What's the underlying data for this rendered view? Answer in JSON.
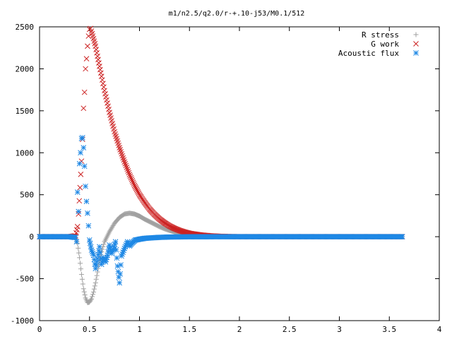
{
  "chart_data": {
    "type": "scatter",
    "title": "m1/n2.5/q2.0/r-+.10-j53/M0.1/512",
    "xlabel": "",
    "ylabel": "",
    "xlim": [
      0,
      4
    ],
    "ylim": [
      -1000,
      2500
    ],
    "x_ticks": [
      "0",
      "0.5",
      "1",
      "1.5",
      "2",
      "2.5",
      "3",
      "3.5",
      "4"
    ],
    "x_tick_values": [
      0,
      0.5,
      1,
      1.5,
      2,
      2.5,
      3,
      3.5,
      4
    ],
    "y_ticks": [
      "2500",
      "2000",
      "1500",
      "1000",
      "500",
      "0",
      "-500",
      "-1000"
    ],
    "y_tick_values": [
      2500,
      2000,
      1500,
      1000,
      500,
      0,
      -500,
      -1000
    ],
    "grid": false,
    "legend_position": "top-right",
    "series": [
      {
        "name": "R stress",
        "marker": "plus",
        "color": "#a0a0a0",
        "points": [
          [
            0.0,
            0
          ],
          [
            0.1,
            0
          ],
          [
            0.2,
            0
          ],
          [
            0.3,
            0
          ],
          [
            0.36,
            -10
          ],
          [
            0.38,
            -80
          ],
          [
            0.4,
            -250
          ],
          [
            0.42,
            -450
          ],
          [
            0.44,
            -620
          ],
          [
            0.46,
            -730
          ],
          [
            0.48,
            -785
          ],
          [
            0.5,
            -780
          ],
          [
            0.52,
            -740
          ],
          [
            0.54,
            -660
          ],
          [
            0.56,
            -550
          ],
          [
            0.58,
            -420
          ],
          [
            0.6,
            -290
          ],
          [
            0.62,
            -180
          ],
          [
            0.65,
            -60
          ],
          [
            0.7,
            60
          ],
          [
            0.75,
            160
          ],
          [
            0.8,
            230
          ],
          [
            0.85,
            270
          ],
          [
            0.9,
            280
          ],
          [
            0.95,
            270
          ],
          [
            1.0,
            245
          ],
          [
            1.05,
            210
          ],
          [
            1.1,
            180
          ],
          [
            1.15,
            150
          ],
          [
            1.2,
            120
          ],
          [
            1.25,
            95
          ],
          [
            1.3,
            75
          ],
          [
            1.35,
            58
          ],
          [
            1.4,
            44
          ],
          [
            1.45,
            33
          ],
          [
            1.5,
            25
          ],
          [
            1.6,
            14
          ],
          [
            1.7,
            7
          ],
          [
            1.8,
            3
          ],
          [
            1.9,
            1
          ],
          [
            2.0,
            0
          ],
          [
            2.5,
            0
          ],
          [
            3.0,
            0
          ],
          [
            3.5,
            0
          ],
          [
            3.63,
            0
          ]
        ]
      },
      {
        "name": "G work",
        "marker": "cross",
        "color": "#cc2222",
        "points": [
          [
            0.0,
            0
          ],
          [
            0.1,
            0
          ],
          [
            0.2,
            0
          ],
          [
            0.3,
            0
          ],
          [
            0.36,
            10
          ],
          [
            0.38,
            120
          ],
          [
            0.39,
            270
          ],
          [
            0.42,
            900
          ],
          [
            0.43,
            1160
          ],
          [
            0.44,
            1530
          ],
          [
            0.45,
            1720
          ],
          [
            0.46,
            2000
          ],
          [
            0.47,
            2120
          ],
          [
            0.48,
            2270
          ],
          [
            0.49,
            2390
          ],
          [
            0.5,
            2470
          ],
          [
            0.51,
            2480
          ],
          [
            0.52,
            2450
          ],
          [
            0.54,
            2360
          ],
          [
            0.56,
            2270
          ],
          [
            0.58,
            2150
          ],
          [
            0.6,
            2030
          ],
          [
            0.62,
            1910
          ],
          [
            0.65,
            1740
          ],
          [
            0.7,
            1480
          ],
          [
            0.75,
            1250
          ],
          [
            0.8,
            1060
          ],
          [
            0.85,
            890
          ],
          [
            0.9,
            740
          ],
          [
            0.95,
            610
          ],
          [
            1.0,
            500
          ],
          [
            1.05,
            410
          ],
          [
            1.1,
            330
          ],
          [
            1.15,
            265
          ],
          [
            1.2,
            210
          ],
          [
            1.25,
            165
          ],
          [
            1.3,
            128
          ],
          [
            1.35,
            98
          ],
          [
            1.4,
            74
          ],
          [
            1.45,
            55
          ],
          [
            1.5,
            40
          ],
          [
            1.6,
            22
          ],
          [
            1.7,
            11
          ],
          [
            1.8,
            5
          ],
          [
            1.9,
            2
          ],
          [
            2.0,
            0
          ],
          [
            2.5,
            0
          ],
          [
            3.0,
            0
          ],
          [
            3.5,
            0
          ],
          [
            3.63,
            0
          ]
        ]
      },
      {
        "name": "Acoustic flux",
        "marker": "star",
        "color": "#1e88e5",
        "points": [
          [
            0.0,
            0
          ],
          [
            0.1,
            0
          ],
          [
            0.2,
            0
          ],
          [
            0.3,
            0
          ],
          [
            0.36,
            -10
          ],
          [
            0.37,
            -60
          ],
          [
            0.38,
            530
          ],
          [
            0.39,
            300
          ],
          [
            0.4,
            870
          ],
          [
            0.41,
            1000
          ],
          [
            0.42,
            1170
          ],
          [
            0.43,
            1180
          ],
          [
            0.44,
            1060
          ],
          [
            0.45,
            840
          ],
          [
            0.46,
            600
          ],
          [
            0.47,
            420
          ],
          [
            0.48,
            280
          ],
          [
            0.49,
            130
          ],
          [
            0.5,
            -40
          ],
          [
            0.52,
            -160
          ],
          [
            0.54,
            -220
          ],
          [
            0.56,
            -380
          ],
          [
            0.58,
            -260
          ],
          [
            0.6,
            -120
          ],
          [
            0.62,
            -330
          ],
          [
            0.64,
            -250
          ],
          [
            0.66,
            -300
          ],
          [
            0.68,
            -220
          ],
          [
            0.7,
            -100
          ],
          [
            0.72,
            -200
          ],
          [
            0.74,
            -150
          ],
          [
            0.76,
            -60
          ],
          [
            0.78,
            -350
          ],
          [
            0.8,
            -550
          ],
          [
            0.82,
            -230
          ],
          [
            0.85,
            -140
          ],
          [
            0.88,
            -60
          ],
          [
            0.9,
            -110
          ],
          [
            0.93,
            -70
          ],
          [
            0.96,
            -40
          ],
          [
            1.0,
            -30
          ],
          [
            1.05,
            -20
          ],
          [
            1.1,
            -15
          ],
          [
            1.2,
            -8
          ],
          [
            1.3,
            -4
          ],
          [
            1.5,
            -1
          ],
          [
            2.0,
            0
          ],
          [
            2.5,
            0
          ],
          [
            3.0,
            0
          ],
          [
            3.5,
            0
          ],
          [
            3.63,
            0
          ]
        ]
      }
    ]
  }
}
